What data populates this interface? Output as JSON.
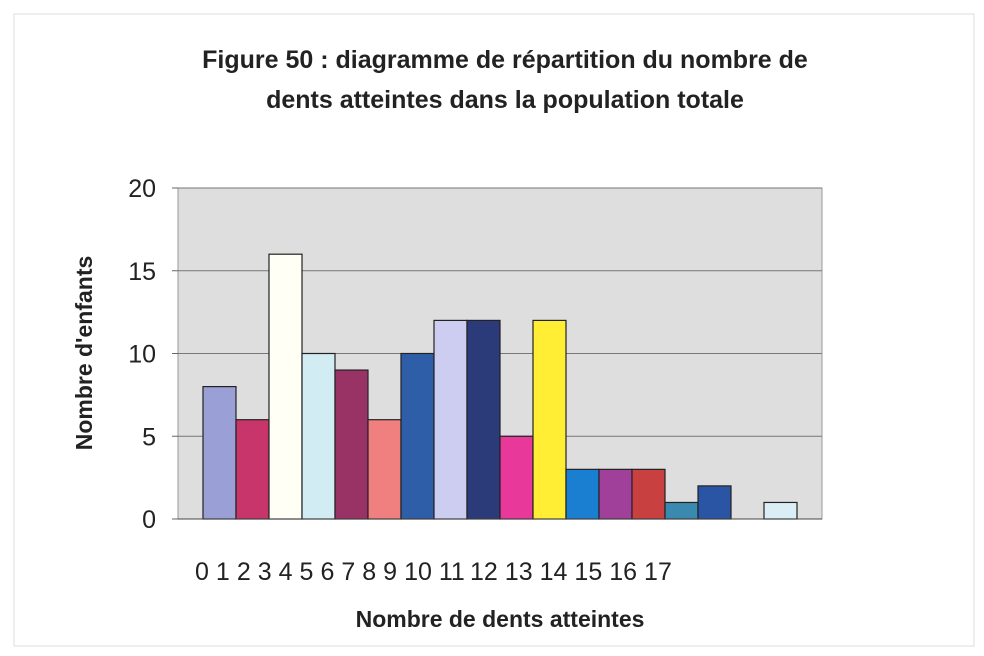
{
  "chart_data": {
    "type": "bar",
    "title": [
      "Figure 50 : diagramme de répartition du nombre de",
      "dents atteintes dans la population totale"
    ],
    "xlabel": "Nombre de dents atteintes",
    "ylabel": "Nombre d'enfants",
    "categories": [
      "0",
      "1",
      "2",
      "3",
      "4",
      "5",
      "6",
      "7",
      "8",
      "9",
      "10",
      "11",
      "12",
      "13",
      "14",
      "15",
      "16",
      "17"
    ],
    "values": [
      8,
      6,
      16,
      10,
      9,
      6,
      10,
      12,
      12,
      5,
      12,
      3,
      3,
      3,
      1,
      2,
      0,
      1
    ],
    "colors": [
      "#9a9fd6",
      "#c8356a",
      "#fffff6",
      "#d2ecf4",
      "#993366",
      "#f08080",
      "#2f5ea8",
      "#cccdf0",
      "#2b3a78",
      "#e8389a",
      "#ffee33",
      "#1a7fd0",
      "#a0409a",
      "#c84040",
      "#3a8ab0",
      "#2a55a5",
      "#888888",
      "#daeef6"
    ],
    "ylim": [
      0,
      20
    ],
    "yticks": [
      0,
      5,
      10,
      15,
      20
    ],
    "grid": true
  }
}
